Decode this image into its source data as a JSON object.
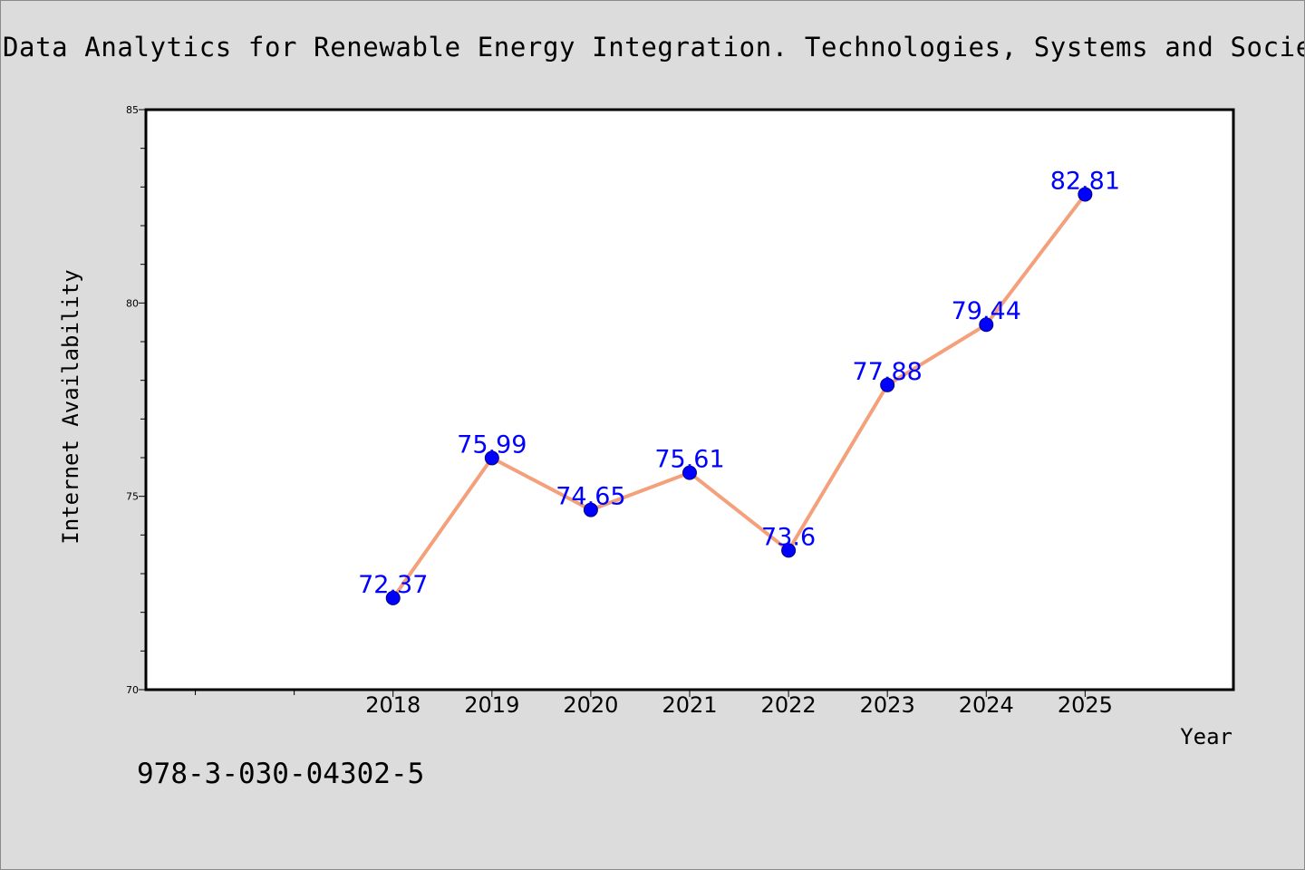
{
  "chart_data": {
    "type": "line",
    "title": "Data Analytics for Renewable Energy Integration. Technologies, Systems and Socie",
    "xlabel": "Year",
    "ylabel": "Internet Availability",
    "categories": [
      "2018",
      "2019",
      "2020",
      "2021",
      "2022",
      "2023",
      "2024",
      "2025"
    ],
    "series": [
      {
        "values": [
          72.37,
          75.99,
          74.65,
          75.61,
          73.6,
          77.88,
          79.44,
          82.81
        ],
        "labels": [
          "72.37",
          "75.99",
          "74.65",
          "75.61",
          "73.6",
          "77.88",
          "79.44",
          "82.81"
        ]
      }
    ],
    "ylim": [
      70,
      85
    ],
    "xlim": [
      2015.5,
      2026.5
    ],
    "y_major_ticks": [
      70,
      75,
      80,
      85
    ],
    "y_major_tick_labels": [
      "70",
      "75",
      "80",
      "85"
    ],
    "y_minor_step": 1,
    "x_extra_ticks": [
      2016,
      2017
    ],
    "grid": false,
    "line_color": "#f4a07a",
    "marker_color": "#0000ff",
    "label_color": "#0000ff"
  },
  "footer": {
    "isbn": "978-3-030-04302-5"
  }
}
